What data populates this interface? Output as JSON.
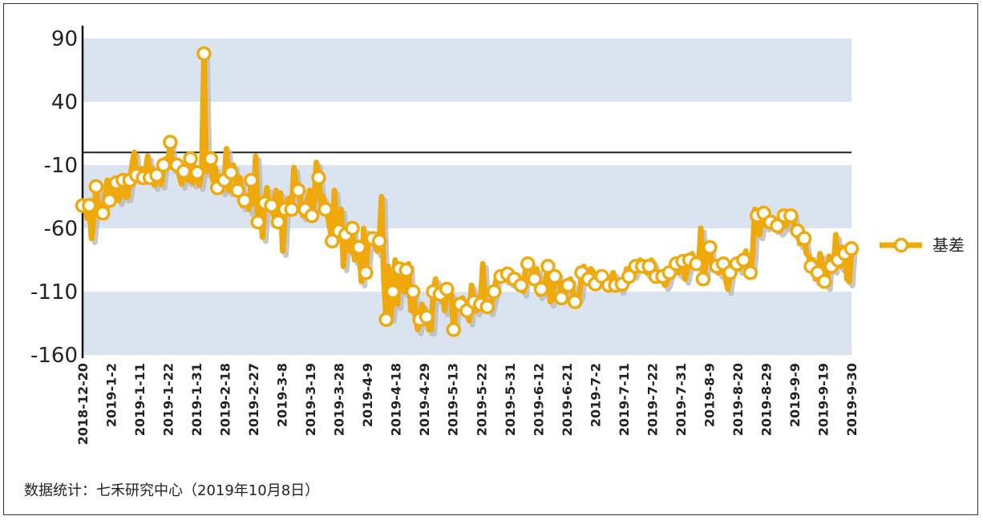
{
  "footer": {
    "source_text": "数据统计：七禾研究中心（2019年10月8日）"
  },
  "chart_data": {
    "type": "line",
    "title": "",
    "xlabel": "",
    "ylabel": "",
    "ylim": [
      -160,
      90
    ],
    "yticks": [
      "90",
      "40",
      "-10",
      "-60",
      "-110",
      "-160"
    ],
    "xtick_labels": [
      "2018-12-20",
      "2019-1-2",
      "2019-1-11",
      "2019-1-22",
      "2019-1-31",
      "2019-2-18",
      "2019-2-27",
      "2019-3-8",
      "2019-3-19",
      "2019-3-28",
      "2019-4-9",
      "2019-4-18",
      "2019-4-29",
      "2019-5-13",
      "2019-5-22",
      "2019-5-31",
      "2019-6-12",
      "2019-6-21",
      "2019-7-2",
      "2019-7-11",
      "2019-7-22",
      "2019-7-31",
      "2019-8-9",
      "2019-8-20",
      "2019-8-29",
      "2019-9-9",
      "2019-9-19",
      "2019-9-30"
    ],
    "reference_line": 0,
    "grid": "horizontal-bands",
    "legend": "right",
    "colors": {
      "series": "#f0a90a",
      "band": "#d9e4f0",
      "marker_fill": "#ffffff"
    },
    "series": [
      {
        "name": "基差",
        "values": [
          -42,
          -40,
          -52,
          -42,
          -68,
          -50,
          -27,
          -46,
          -42,
          -48,
          -35,
          -22,
          -38,
          -28,
          -32,
          -24,
          -38,
          -30,
          -22,
          -35,
          -35,
          -22,
          -10,
          0,
          -18,
          -15,
          -13,
          -20,
          -15,
          -3,
          -20,
          -13,
          -26,
          -18,
          -22,
          -25,
          -10,
          -5,
          -8,
          8,
          -12,
          -10,
          -10,
          -18,
          -25,
          -15,
          -18,
          -22,
          -5,
          -24,
          -12,
          -16,
          -26,
          -15,
          78,
          -15,
          -10,
          -5,
          -22,
          -12,
          -28,
          -20,
          -30,
          -22,
          3,
          -30,
          -16,
          -10,
          -20,
          -30,
          -20,
          -42,
          -38,
          -36,
          -45,
          -22,
          -40,
          -3,
          -55,
          -38,
          -67,
          -40,
          -28,
          -44,
          -42,
          -50,
          -30,
          -55,
          -32,
          -78,
          -45,
          -38,
          -36,
          -45,
          -12,
          -25,
          -30,
          -40,
          -50,
          -45,
          -38,
          -30,
          -50,
          -38,
          -8,
          -20,
          -40,
          -35,
          -45,
          -50,
          -60,
          -70,
          -30,
          -65,
          -62,
          -45,
          -90,
          -65,
          -70,
          -78,
          -60,
          -85,
          -80,
          -75,
          -102,
          -60,
          -95,
          -72,
          -65,
          -68,
          -72,
          -78,
          -70,
          -35,
          -100,
          -132,
          -90,
          -130,
          -110,
          -85,
          -120,
          -92,
          -94,
          -110,
          -93,
          -88,
          -125,
          -110,
          -125,
          -140,
          -132,
          -120,
          -125,
          -130,
          -140,
          -140,
          -110,
          -100,
          -115,
          -112,
          -110,
          -125,
          -108,
          -110,
          -112,
          -140,
          -118,
          -120,
          -120,
          -115,
          -128,
          -125,
          -133,
          -105,
          -118,
          -125,
          -122,
          -120,
          -88,
          -118,
          -122,
          -125,
          -118,
          -110,
          -100,
          -95,
          -98,
          -95,
          -100,
          -96,
          -102,
          -95,
          -100,
          -103,
          -98,
          -105,
          -110,
          -92,
          -88,
          -86,
          -95,
          -100,
          -92,
          -112,
          -108,
          -110,
          -100,
          -90,
          -118,
          -115,
          -98,
          -95,
          -102,
          -115,
          -112,
          -110,
          -105,
          -100,
          -110,
          -118,
          -115,
          -112,
          -95,
          -90,
          -98,
          -100,
          -92,
          -94,
          -104,
          -102,
          -100,
          -98,
          -95,
          -98,
          -105,
          -100,
          -95,
          -105,
          -102,
          -108,
          -104,
          -100,
          -92,
          -98,
          -94,
          -96,
          -90,
          -88,
          -85,
          -90,
          -92,
          -95,
          -90,
          -85,
          -88,
          -98,
          -95,
          -100,
          -98,
          -105,
          -102,
          -95,
          -90,
          -92,
          -88,
          -95,
          -92,
          -86,
          -100,
          -92,
          -85,
          -80,
          -85,
          -88,
          -90,
          -60,
          -100,
          -90,
          -80,
          -75,
          -88,
          -92,
          -90,
          -95,
          -92,
          -88,
          -100,
          -108,
          -95,
          -90,
          -85,
          -88,
          -92,
          -90,
          -85,
          -78,
          -90,
          -95,
          -80,
          -45,
          -50,
          -65,
          -52,
          -48,
          -58,
          -50,
          -55,
          -55,
          -60,
          -58,
          -62,
          -60,
          -50,
          -58,
          -52,
          -50,
          -48,
          -65,
          -62,
          -72,
          -68,
          -68,
          -80,
          -82,
          -90,
          -85,
          -100,
          -95,
          -80,
          -88,
          -102,
          -105,
          -82,
          -90,
          -92,
          -65,
          -85,
          -90,
          -75,
          -80,
          -100,
          -102,
          -76
        ]
      }
    ]
  }
}
